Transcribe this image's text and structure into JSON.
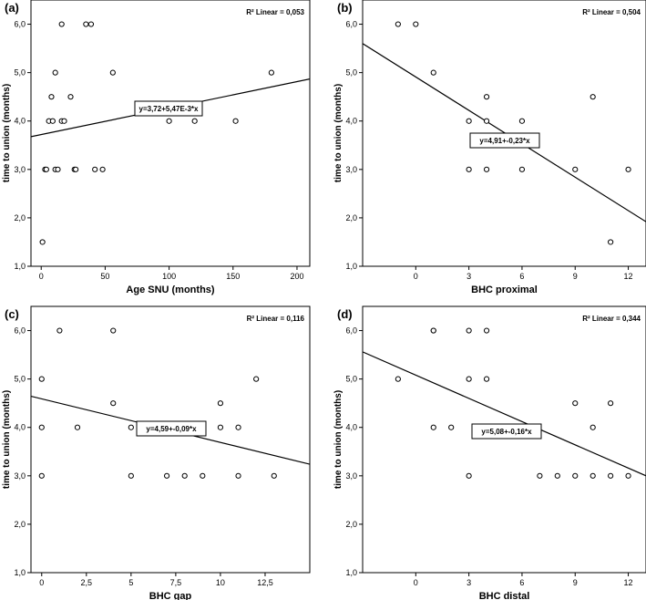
{
  "chart_data": [
    {
      "type": "scatter",
      "panel_label": "(a)",
      "r2_text": "R² Linear = 0,053",
      "equation": "y=3,72+5,47E-3*x",
      "xlabel": "Age SNU (months)",
      "ylabel": "time to union (months)",
      "xlim": [
        -8,
        210
      ],
      "ylim": [
        1,
        6.5
      ],
      "xticks": [
        0,
        50,
        100,
        150,
        200
      ],
      "xtick_labels": [
        "0",
        "50",
        "100",
        "150",
        "200"
      ],
      "yticks": [
        1,
        2,
        3,
        4,
        5,
        6
      ],
      "ytick_labels": [
        "1,0",
        "2,0",
        "3,0",
        "4,0",
        "5,0",
        "6,0"
      ],
      "fit": {
        "intercept": 3.72,
        "slope": 0.00547
      },
      "points": [
        [
          1,
          1.5
        ],
        [
          3,
          3
        ],
        [
          4,
          3
        ],
        [
          11,
          3
        ],
        [
          13,
          3
        ],
        [
          26,
          3
        ],
        [
          27,
          3
        ],
        [
          42,
          3
        ],
        [
          48,
          3
        ],
        [
          6,
          4
        ],
        [
          9,
          4
        ],
        [
          16,
          4
        ],
        [
          18,
          4
        ],
        [
          100,
          4
        ],
        [
          120,
          4
        ],
        [
          152,
          4
        ],
        [
          23,
          4.5
        ],
        [
          8,
          4.5
        ],
        [
          11,
          5
        ],
        [
          56,
          5
        ],
        [
          180,
          5
        ],
        [
          16,
          6
        ],
        [
          35,
          6
        ],
        [
          39,
          6
        ]
      ]
    },
    {
      "type": "scatter",
      "panel_label": "(b)",
      "r2_text": "R² Linear = 0,504",
      "equation": "y=4,91+-0,23*x",
      "xlabel": "BHC proximal",
      "ylabel": "time to union (months)",
      "xlim": [
        -3,
        13
      ],
      "ylim": [
        1,
        6.5
      ],
      "xticks": [
        0,
        3,
        6,
        9,
        12
      ],
      "xtick_labels": [
        "0",
        "3",
        "6",
        "9",
        "12"
      ],
      "yticks": [
        1,
        2,
        3,
        4,
        5,
        6
      ],
      "ytick_labels": [
        "1,0",
        "2,0",
        "3,0",
        "4,0",
        "5,0",
        "6,0"
      ],
      "fit": {
        "intercept": 4.91,
        "slope": -0.23
      },
      "points": [
        [
          -1,
          6
        ],
        [
          0,
          6
        ],
        [
          1,
          5
        ],
        [
          3,
          4
        ],
        [
          3,
          3
        ],
        [
          4,
          4.5
        ],
        [
          4,
          4
        ],
        [
          4,
          3
        ],
        [
          6,
          4
        ],
        [
          6,
          3
        ],
        [
          9,
          3
        ],
        [
          10,
          4.5
        ],
        [
          11,
          1.5
        ],
        [
          12,
          3
        ]
      ]
    },
    {
      "type": "scatter",
      "panel_label": "(c)",
      "r2_text": "R² Linear = 0,116",
      "equation": "y=4,59+-0,09*x",
      "xlabel": "BHC gap",
      "ylabel": "time to union (months)",
      "xlim": [
        -0.6,
        15
      ],
      "ylim": [
        1,
        6.5
      ],
      "xticks": [
        0,
        2.5,
        5,
        7.5,
        10,
        12.5
      ],
      "xtick_labels": [
        "0",
        "2,5",
        "5",
        "7,5",
        "10",
        "12,5"
      ],
      "yticks": [
        1,
        2,
        3,
        4,
        5,
        6
      ],
      "ytick_labels": [
        "1,0",
        "2,0",
        "3,0",
        "4,0",
        "5,0",
        "6,0"
      ],
      "fit": {
        "intercept": 4.59,
        "slope": -0.09
      },
      "points": [
        [
          0,
          5
        ],
        [
          0,
          4
        ],
        [
          0,
          3
        ],
        [
          1,
          6
        ],
        [
          2,
          4
        ],
        [
          4,
          6
        ],
        [
          4,
          4.5
        ],
        [
          5,
          4
        ],
        [
          5,
          3
        ],
        [
          7,
          3
        ],
        [
          8,
          3
        ],
        [
          9,
          3
        ],
        [
          10,
          4.5
        ],
        [
          10,
          4
        ],
        [
          11,
          4
        ],
        [
          11,
          3
        ],
        [
          12,
          5
        ],
        [
          13,
          3
        ]
      ]
    },
    {
      "type": "scatter",
      "panel_label": "(d)",
      "r2_text": "R² Linear = 0,344",
      "equation": "y=5,08+-0,16*x",
      "xlabel": "BHC distal",
      "ylabel": "time to union (months)",
      "xlim": [
        -3,
        13
      ],
      "ylim": [
        1,
        6.5
      ],
      "xticks": [
        0,
        3,
        6,
        9,
        12
      ],
      "xtick_labels": [
        "0",
        "3",
        "6",
        "9",
        "12"
      ],
      "yticks": [
        1,
        2,
        3,
        4,
        5,
        6
      ],
      "ytick_labels": [
        "1,0",
        "2,0",
        "3,0",
        "4,0",
        "5,0",
        "6,0"
      ],
      "fit": {
        "intercept": 5.08,
        "slope": -0.16
      },
      "points": [
        [
          -1,
          5
        ],
        [
          1,
          6
        ],
        [
          1,
          6
        ],
        [
          1,
          4
        ],
        [
          2,
          4
        ],
        [
          3,
          6
        ],
        [
          3,
          5
        ],
        [
          3,
          3
        ],
        [
          4,
          6
        ],
        [
          4,
          5
        ],
        [
          7,
          3
        ],
        [
          8,
          3
        ],
        [
          9,
          4.5
        ],
        [
          9,
          3
        ],
        [
          10,
          4
        ],
        [
          10,
          3
        ],
        [
          11,
          4.5
        ],
        [
          11,
          3
        ],
        [
          12,
          3
        ]
      ]
    }
  ]
}
